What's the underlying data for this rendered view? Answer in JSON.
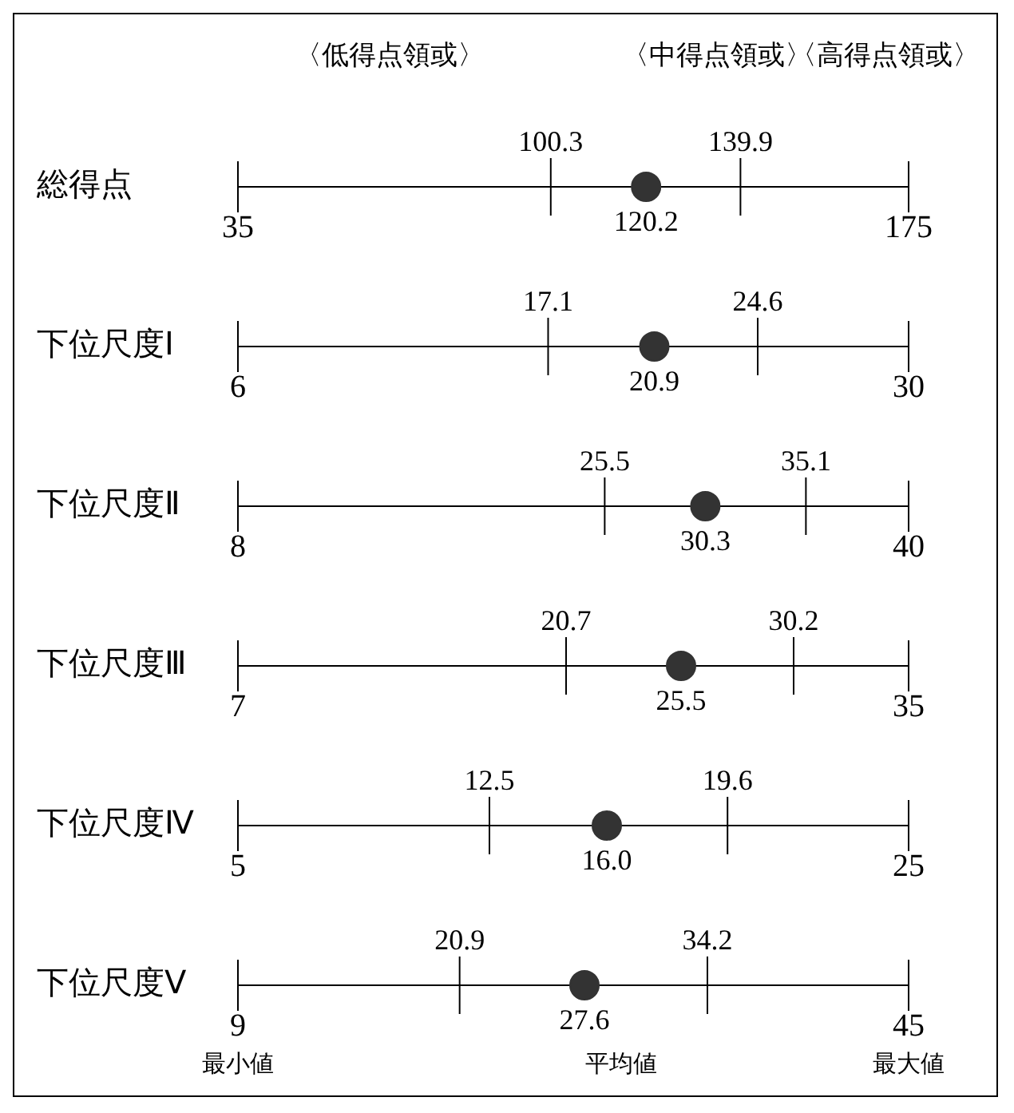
{
  "chart_data": [
    {
      "type": "scatter",
      "orientation": "horizontal",
      "categories": [
        "総得点"
      ],
      "values": [
        120.2
      ],
      "xlim": [
        35,
        175
      ],
      "xticks": [
        35,
        175
      ],
      "ref_lines": [
        {
          "axis": "x",
          "value": 100.3,
          "label": "100.3"
        },
        {
          "axis": "x",
          "value": 139.9,
          "label": "139.9"
        }
      ],
      "data_labels": true,
      "color": "#333333",
      "annotations": [
        "〈低得点領或〉",
        "〈中得点領或〉",
        "〈高得点領或〉"
      ]
    },
    {
      "type": "scatter",
      "orientation": "horizontal",
      "categories": [
        "下位尺度Ⅰ"
      ],
      "values": [
        20.9
      ],
      "xlim": [
        6,
        30
      ],
      "xticks": [
        6,
        30
      ],
      "ref_lines": [
        {
          "axis": "x",
          "value": 17.1,
          "label": "17.1"
        },
        {
          "axis": "x",
          "value": 24.6,
          "label": "24.6"
        }
      ],
      "data_labels": true,
      "color": "#333333"
    },
    {
      "type": "scatter",
      "orientation": "horizontal",
      "categories": [
        "下位尺度Ⅱ"
      ],
      "values": [
        30.3
      ],
      "xlim": [
        8,
        40
      ],
      "xticks": [
        8,
        40
      ],
      "ref_lines": [
        {
          "axis": "x",
          "value": 25.5,
          "label": "25.5"
        },
        {
          "axis": "x",
          "value": 35.1,
          "label": "35.1"
        }
      ],
      "data_labels": true,
      "color": "#333333"
    },
    {
      "type": "scatter",
      "orientation": "horizontal",
      "categories": [
        "下位尺度Ⅲ"
      ],
      "values": [
        25.5
      ],
      "xlim": [
        7,
        35
      ],
      "xticks": [
        7,
        35
      ],
      "ref_lines": [
        {
          "axis": "x",
          "value": 20.7,
          "label": "20.7"
        },
        {
          "axis": "x",
          "value": 30.2,
          "label": "30.2"
        }
      ],
      "data_labels": true,
      "color": "#333333"
    },
    {
      "type": "scatter",
      "orientation": "horizontal",
      "categories": [
        "下位尺度Ⅳ"
      ],
      "values": [
        16.0
      ],
      "xlim": [
        5,
        25
      ],
      "xticks": [
        5,
        25
      ],
      "ref_lines": [
        {
          "axis": "x",
          "value": 12.5,
          "label": "12.5"
        },
        {
          "axis": "x",
          "value": 19.6,
          "label": "19.6"
        }
      ],
      "value_labels": [
        "16.0"
      ],
      "color": "#333333"
    },
    {
      "type": "scatter",
      "orientation": "horizontal",
      "categories": [
        "下位尺度Ⅴ"
      ],
      "values": [
        27.6
      ],
      "xlim": [
        9,
        45
      ],
      "xticks": [
        9,
        45
      ],
      "ref_lines": [
        {
          "axis": "x",
          "value": 20.9,
          "label": "20.9"
        },
        {
          "axis": "x",
          "value": 34.2,
          "label": "34.2"
        }
      ],
      "data_labels": true,
      "color": "#333333",
      "annotations": [
        "最小値",
        "平均値",
        "最大値"
      ]
    }
  ]
}
